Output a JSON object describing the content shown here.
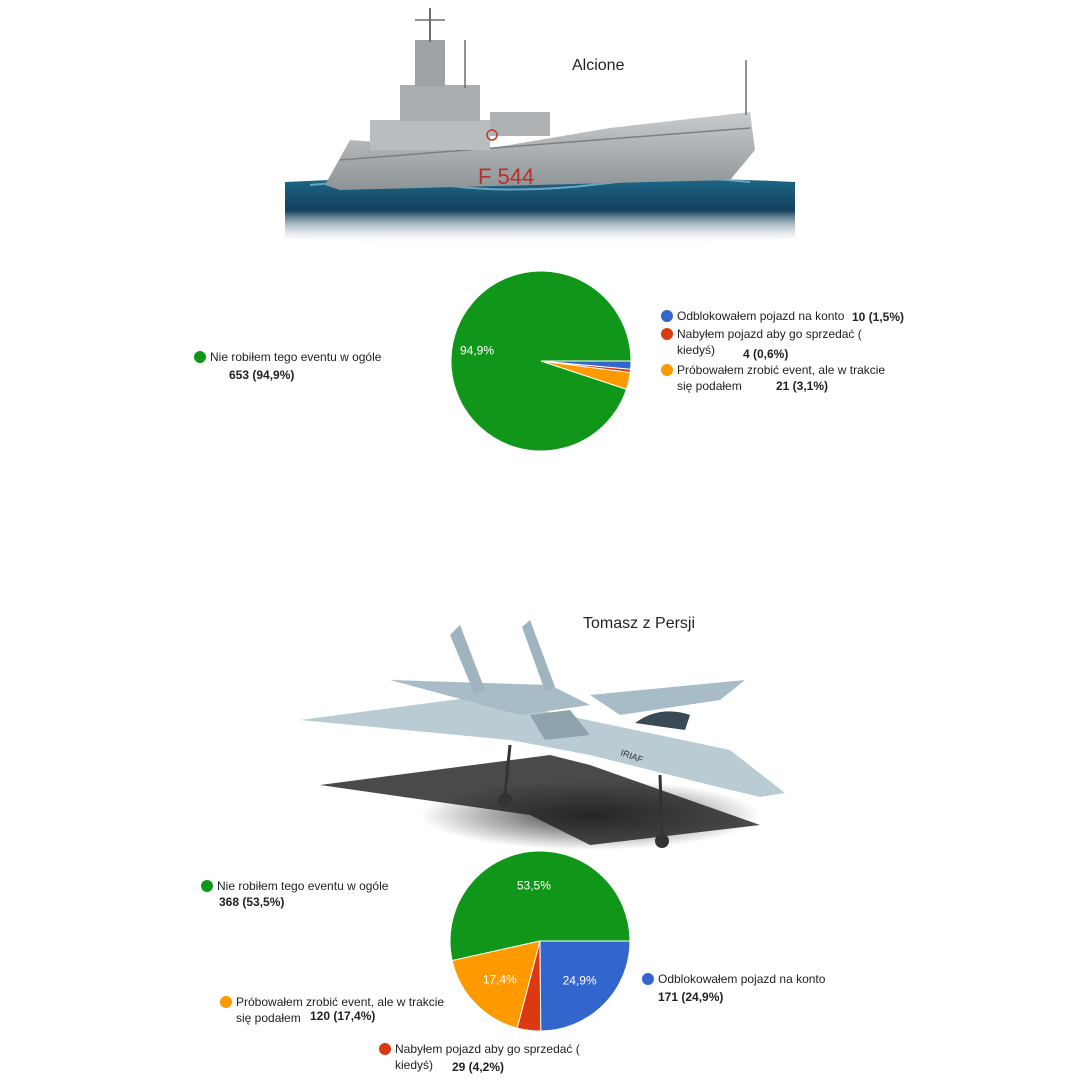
{
  "colors": {
    "green": "#109618",
    "blue": "#3366cc",
    "red": "#dc3912",
    "orange": "#ff9900"
  },
  "illustrations": {
    "panel_1": "warship-image",
    "panel_2": "fighter-jet-image"
  },
  "chart_data": [
    {
      "type": "pie",
      "title": "Alcione",
      "categories": [
        "Nie robiłem tego eventu w ogóle",
        "Odblokowałem pojazd na konto",
        "Nabyłem pojazd aby go sprzedać ( kiedyś)",
        "Próbowałem zrobić event, ale w trakcie się podałem"
      ],
      "values": [
        653,
        10,
        4,
        21
      ],
      "percent_labels": [
        "94,9%",
        "1,5%",
        "0,6%",
        "3,1%"
      ],
      "value_labels": [
        "653 (94,9%)",
        "10 (1,5%)",
        "4 (0,6%)",
        "21 (3,1%)"
      ],
      "slice_colors": [
        "#109618",
        "#3366cc",
        "#dc3912",
        "#ff9900"
      ]
    },
    {
      "type": "pie",
      "title": "Tomasz z Persji",
      "categories": [
        "Nie robiłem tego eventu w ogóle",
        "Odblokowałem pojazd na konto",
        "Nabyłem pojazd aby go sprzedać ( kiedyś)",
        "Próbowałem zrobić event, ale w trakcie się podałem"
      ],
      "values": [
        368,
        171,
        29,
        120
      ],
      "percent_labels": [
        "53,5%",
        "24,9%",
        "4,2%",
        "17,4%"
      ],
      "value_labels": [
        "368 (53,5%)",
        "171 (24,9%)",
        "29 (4,2%)",
        "120 (17,4%)"
      ],
      "slice_colors": [
        "#109618",
        "#3366cc",
        "#dc3912",
        "#ff9900"
      ]
    }
  ]
}
